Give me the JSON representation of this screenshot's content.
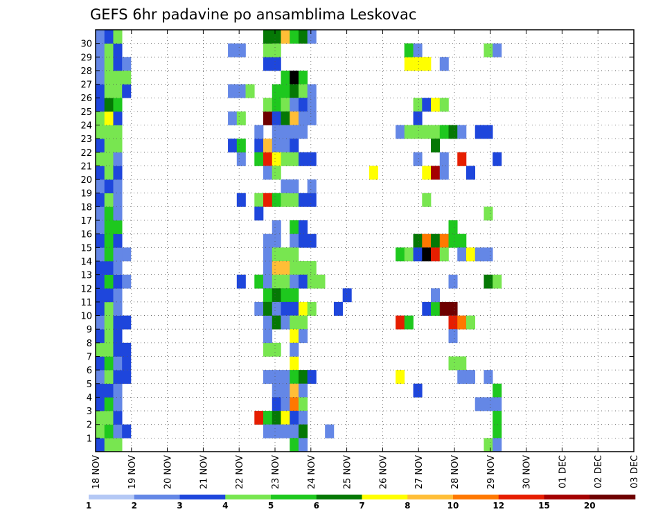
{
  "chart_data": {
    "type": "heatmap",
    "title": "GEFS 6hr padavine po ansamblima Leskovac",
    "xlabel": "",
    "ylabel": "",
    "x_tick_labels": [
      "18 NOV",
      "19 NOV",
      "20 NOV",
      "21 NOV",
      "22 NOV",
      "23 NOV",
      "24 NOV",
      "25 NOV",
      "26 NOV",
      "27 NOV",
      "28 NOV",
      "29 NOV",
      "30 NOV",
      "01 DEC",
      "02 DEC",
      "03 DEC"
    ],
    "y_tick_labels": [
      "1",
      "2",
      "3",
      "4",
      "5",
      "6",
      "7",
      "8",
      "9",
      "10",
      "11",
      "12",
      "13",
      "14",
      "15",
      "16",
      "17",
      "18",
      "19",
      "20",
      "21",
      "22",
      "23",
      "24",
      "25",
      "26",
      "27",
      "28",
      "29",
      "30"
    ],
    "time_steps": 61,
    "members": 31,
    "grid": true,
    "colorbar": {
      "levels": [
        "1",
        "2",
        "3",
        "4",
        "5",
        "6",
        "7",
        "8",
        "10",
        "12",
        "15",
        "20"
      ],
      "colors": [
        "#b4c8f5",
        "#6487e6",
        "#1e46dc",
        "#78e650",
        "#1ec81e",
        "#057805",
        "#ffff00",
        "#ffbe37",
        "#ff7800",
        "#e61e00",
        "#a50000",
        "#6e0000"
      ]
    },
    "cells": [
      [
        0,
        0,
        2
      ],
      [
        0,
        1,
        3
      ],
      [
        0,
        2,
        3
      ],
      [
        0,
        3,
        2
      ],
      [
        0,
        4,
        2
      ],
      [
        0,
        5,
        1
      ],
      [
        0,
        6,
        2
      ],
      [
        0,
        7,
        3
      ],
      [
        0,
        8,
        2
      ],
      [
        0,
        9,
        1
      ],
      [
        0,
        10,
        2
      ],
      [
        0,
        11,
        2
      ],
      [
        0,
        12,
        2
      ],
      [
        0,
        13,
        2
      ],
      [
        0,
        14,
        1
      ],
      [
        0,
        15,
        2
      ],
      [
        0,
        16,
        1
      ],
      [
        0,
        17,
        1
      ],
      [
        0,
        18,
        2
      ],
      [
        0,
        19,
        1
      ],
      [
        0,
        20,
        2
      ],
      [
        0,
        21,
        3
      ],
      [
        0,
        22,
        2
      ],
      [
        0,
        23,
        3
      ],
      [
        0,
        24,
        3
      ],
      [
        0,
        25,
        2
      ],
      [
        0,
        26,
        2
      ],
      [
        0,
        27,
        1
      ],
      [
        0,
        28,
        1
      ],
      [
        0,
        29,
        1
      ],
      [
        0,
        30,
        1
      ],
      [
        1,
        0,
        3
      ],
      [
        1,
        1,
        4
      ],
      [
        1,
        2,
        3
      ],
      [
        1,
        3,
        4
      ],
      [
        1,
        4,
        2
      ],
      [
        1,
        5,
        3
      ],
      [
        1,
        6,
        4
      ],
      [
        1,
        7,
        3
      ],
      [
        1,
        8,
        3
      ],
      [
        1,
        9,
        3
      ],
      [
        1,
        10,
        3
      ],
      [
        1,
        11,
        2
      ],
      [
        1,
        12,
        4
      ],
      [
        1,
        13,
        2
      ],
      [
        1,
        14,
        4
      ],
      [
        1,
        15,
        4
      ],
      [
        1,
        16,
        4
      ],
      [
        1,
        17,
        4
      ],
      [
        1,
        18,
        3
      ],
      [
        1,
        19,
        2
      ],
      [
        1,
        20,
        3
      ],
      [
        1,
        21,
        3
      ],
      [
        1,
        22,
        3
      ],
      [
        1,
        23,
        3
      ],
      [
        1,
        24,
        6
      ],
      [
        1,
        25,
        5
      ],
      [
        1,
        26,
        3
      ],
      [
        1,
        27,
        3
      ],
      [
        1,
        28,
        3
      ],
      [
        1,
        29,
        3
      ],
      [
        1,
        30,
        2
      ],
      [
        2,
        0,
        3
      ],
      [
        2,
        1,
        1
      ],
      [
        2,
        2,
        2
      ],
      [
        2,
        3,
        1
      ],
      [
        2,
        4,
        1
      ],
      [
        2,
        5,
        2
      ],
      [
        2,
        6,
        1
      ],
      [
        2,
        7,
        2
      ],
      [
        2,
        8,
        2
      ],
      [
        2,
        9,
        2
      ],
      [
        2,
        10,
        1
      ],
      [
        2,
        11,
        1
      ],
      [
        2,
        12,
        2
      ],
      [
        2,
        13,
        1
      ],
      [
        2,
        14,
        1
      ],
      [
        2,
        15,
        2
      ],
      [
        2,
        16,
        4
      ],
      [
        2,
        17,
        1
      ],
      [
        2,
        18,
        1
      ],
      [
        2,
        19,
        1
      ],
      [
        2,
        20,
        2
      ],
      [
        2,
        21,
        1
      ],
      [
        2,
        22,
        3
      ],
      [
        2,
        23,
        3
      ],
      [
        2,
        24,
        2
      ],
      [
        2,
        25,
        4
      ],
      [
        2,
        26,
        3
      ],
      [
        2,
        27,
        3
      ],
      [
        2,
        28,
        2
      ],
      [
        2,
        29,
        2
      ],
      [
        2,
        30,
        3
      ],
      [
        3,
        1,
        2
      ],
      [
        3,
        5,
        2
      ],
      [
        3,
        6,
        2
      ],
      [
        3,
        7,
        2
      ],
      [
        3,
        9,
        2
      ],
      [
        3,
        12,
        1
      ],
      [
        3,
        14,
        1
      ],
      [
        3,
        28,
        1
      ],
      [
        3,
        26,
        2
      ],
      [
        3,
        27,
        3
      ],
      [
        15,
        22,
        2
      ],
      [
        15,
        24,
        1
      ],
      [
        15,
        26,
        1
      ],
      [
        15,
        29,
        1
      ],
      [
        16,
        21,
        1
      ],
      [
        16,
        22,
        4
      ],
      [
        16,
        26,
        1
      ],
      [
        16,
        29,
        1
      ],
      [
        17,
        26,
        3
      ],
      [
        16,
        24,
        3
      ],
      [
        16,
        18,
        2
      ],
      [
        16,
        12,
        2
      ],
      [
        18,
        18,
        3
      ],
      [
        18,
        12,
        4
      ],
      [
        18,
        22,
        2
      ],
      [
        18,
        21,
        4
      ],
      [
        18,
        17,
        2
      ],
      [
        18,
        2,
        9
      ],
      [
        18,
        10,
        1
      ],
      [
        18,
        23,
        1
      ],
      [
        19,
        18,
        9
      ],
      [
        19,
        24,
        11
      ],
      [
        19,
        25,
        3
      ],
      [
        19,
        28,
        2
      ],
      [
        19,
        29,
        3
      ],
      [
        19,
        30,
        5
      ],
      [
        19,
        21,
        9
      ],
      [
        19,
        22,
        7
      ],
      [
        19,
        20,
        1
      ],
      [
        19,
        13,
        1
      ],
      [
        19,
        14,
        1
      ],
      [
        19,
        12,
        1
      ],
      [
        19,
        11,
        4
      ],
      [
        19,
        7,
        3
      ],
      [
        19,
        8,
        1
      ],
      [
        19,
        9,
        1
      ],
      [
        19,
        5,
        1
      ],
      [
        19,
        2,
        4
      ],
      [
        19,
        1,
        1
      ],
      [
        19,
        15,
        1
      ],
      [
        19,
        10,
        5
      ],
      [
        20,
        30,
        5
      ],
      [
        20,
        28,
        2
      ],
      [
        20,
        26,
        4
      ],
      [
        20,
        25,
        4
      ],
      [
        20,
        24,
        2
      ],
      [
        20,
        23,
        1
      ],
      [
        20,
        22,
        1
      ],
      [
        20,
        21,
        6
      ],
      [
        20,
        20,
        3
      ],
      [
        20,
        18,
        4
      ],
      [
        20,
        16,
        1
      ],
      [
        20,
        15,
        1
      ],
      [
        20,
        14,
        3
      ],
      [
        20,
        13,
        7
      ],
      [
        20,
        12,
        3
      ],
      [
        20,
        11,
        5
      ],
      [
        20,
        10,
        1
      ],
      [
        20,
        9,
        5
      ],
      [
        20,
        7,
        3
      ],
      [
        20,
        5,
        1
      ],
      [
        20,
        4,
        1
      ],
      [
        20,
        3,
        2
      ],
      [
        20,
        2,
        5
      ],
      [
        20,
        1,
        1
      ],
      [
        20,
        29,
        3
      ],
      [
        21,
        30,
        7
      ],
      [
        21,
        27,
        4
      ],
      [
        21,
        26,
        4
      ],
      [
        21,
        25,
        3
      ],
      [
        21,
        24,
        5
      ],
      [
        21,
        23,
        1
      ],
      [
        21,
        22,
        1
      ],
      [
        21,
        21,
        3
      ],
      [
        21,
        19,
        1
      ],
      [
        21,
        18,
        3
      ],
      [
        21,
        14,
        3
      ],
      [
        21,
        13,
        7
      ],
      [
        21,
        12,
        3
      ],
      [
        21,
        11,
        4
      ],
      [
        21,
        10,
        2
      ],
      [
        21,
        9,
        1
      ],
      [
        21,
        5,
        1
      ],
      [
        21,
        4,
        1
      ],
      [
        21,
        3,
        1
      ],
      [
        21,
        2,
        6
      ],
      [
        21,
        1,
        1
      ],
      [
        22,
        30,
        4
      ],
      [
        22,
        27,
        12
      ],
      [
        22,
        26,
        5
      ],
      [
        22,
        25,
        1
      ],
      [
        22,
        24,
        7
      ],
      [
        22,
        23,
        1
      ],
      [
        22,
        22,
        2
      ],
      [
        22,
        21,
        3
      ],
      [
        22,
        18,
        3
      ],
      [
        22,
        16,
        4
      ],
      [
        22,
        15,
        1
      ],
      [
        22,
        14,
        3
      ],
      [
        22,
        13,
        3
      ],
      [
        22,
        12,
        1
      ],
      [
        22,
        11,
        4
      ],
      [
        22,
        10,
        2
      ],
      [
        22,
        9,
        3
      ],
      [
        22,
        8,
        6
      ],
      [
        22,
        6,
        6
      ],
      [
        22,
        5,
        4
      ],
      [
        22,
        4,
        7
      ],
      [
        22,
        3,
        8
      ],
      [
        22,
        2,
        2
      ],
      [
        22,
        1,
        1
      ],
      [
        22,
        0,
        4
      ],
      [
        22,
        7,
        1
      ],
      [
        22,
        19,
        1
      ],
      [
        23,
        30,
        5
      ],
      [
        23,
        27,
        4
      ],
      [
        23,
        26,
        3
      ],
      [
        23,
        25,
        2
      ],
      [
        23,
        24,
        1
      ],
      [
        23,
        23,
        1
      ],
      [
        23,
        21,
        2
      ],
      [
        23,
        18,
        2
      ],
      [
        23,
        16,
        2
      ],
      [
        23,
        15,
        2
      ],
      [
        23,
        13,
        3
      ],
      [
        23,
        12,
        2
      ],
      [
        23,
        10,
        6
      ],
      [
        23,
        9,
        3
      ],
      [
        23,
        8,
        1
      ],
      [
        23,
        5,
        5
      ],
      [
        23,
        4,
        1
      ],
      [
        23,
        3,
        3
      ],
      [
        23,
        2,
        1
      ],
      [
        23,
        1,
        5
      ],
      [
        23,
        0,
        1
      ],
      [
        24,
        30,
        1
      ],
      [
        24,
        26,
        1
      ],
      [
        24,
        25,
        1
      ],
      [
        24,
        24,
        1
      ],
      [
        24,
        21,
        2
      ],
      [
        24,
        18,
        2
      ],
      [
        24,
        15,
        2
      ],
      [
        24,
        13,
        3
      ],
      [
        24,
        12,
        3
      ],
      [
        24,
        10,
        3
      ],
      [
        24,
        5,
        2
      ],
      [
        24,
        19,
        1
      ],
      [
        25,
        12,
        3
      ],
      [
        26,
        1,
        1
      ],
      [
        27,
        10,
        2
      ],
      [
        28,
        11,
        2
      ],
      [
        31,
        20,
        6
      ],
      [
        34,
        23,
        1
      ],
      [
        34,
        9,
        9
      ],
      [
        34,
        14,
        4
      ],
      [
        34,
        5,
        6
      ],
      [
        35,
        29,
        4
      ],
      [
        35,
        28,
        6
      ],
      [
        35,
        23,
        3
      ],
      [
        35,
        14,
        3
      ],
      [
        35,
        9,
        4
      ],
      [
        35,
        29,
        4
      ],
      [
        36,
        29,
        1
      ],
      [
        36,
        28,
        6
      ],
      [
        36,
        25,
        3
      ],
      [
        36,
        24,
        2
      ],
      [
        36,
        23,
        3
      ],
      [
        36,
        21,
        1
      ],
      [
        36,
        15,
        5
      ],
      [
        36,
        14,
        2
      ],
      [
        36,
        4,
        2
      ],
      [
        37,
        28,
        6
      ],
      [
        37,
        25,
        2
      ],
      [
        37,
        23,
        3
      ],
      [
        37,
        20,
        6
      ],
      [
        37,
        18,
        3
      ],
      [
        37,
        15,
        8
      ],
      [
        37,
        14,
        12
      ],
      [
        37,
        10,
        2
      ],
      [
        38,
        25,
        6
      ],
      [
        38,
        23,
        3
      ],
      [
        38,
        22,
        5
      ],
      [
        38,
        20,
        10
      ],
      [
        38,
        15,
        5
      ],
      [
        38,
        14,
        9
      ],
      [
        38,
        10,
        4
      ],
      [
        38,
        11,
        1
      ],
      [
        39,
        28,
        1
      ],
      [
        39,
        25,
        3
      ],
      [
        39,
        23,
        4
      ],
      [
        39,
        21,
        1
      ],
      [
        39,
        20,
        1
      ],
      [
        39,
        15,
        8
      ],
      [
        39,
        14,
        3
      ],
      [
        39,
        10,
        11
      ],
      [
        40,
        23,
        5
      ],
      [
        40,
        16,
        4
      ],
      [
        40,
        15,
        4
      ],
      [
        40,
        10,
        11
      ],
      [
        40,
        9,
        9
      ],
      [
        40,
        8,
        1
      ],
      [
        40,
        6,
        3
      ],
      [
        40,
        12,
        1
      ],
      [
        41,
        23,
        1
      ],
      [
        41,
        15,
        4
      ],
      [
        41,
        21,
        9
      ],
      [
        41,
        9,
        8
      ],
      [
        41,
        6,
        3
      ],
      [
        41,
        14,
        1
      ],
      [
        41,
        5,
        1
      ],
      [
        42,
        20,
        2
      ],
      [
        42,
        14,
        6
      ],
      [
        42,
        9,
        3
      ],
      [
        42,
        5,
        1
      ],
      [
        43,
        23,
        2
      ],
      [
        43,
        14,
        1
      ],
      [
        43,
        3,
        1
      ],
      [
        44,
        29,
        3
      ],
      [
        44,
        23,
        2
      ],
      [
        44,
        17,
        3
      ],
      [
        44,
        14,
        1
      ],
      [
        44,
        12,
        5
      ],
      [
        44,
        5,
        1
      ],
      [
        44,
        3,
        1
      ],
      [
        44,
        0,
        3
      ],
      [
        45,
        29,
        1
      ],
      [
        45,
        12,
        3
      ],
      [
        45,
        4,
        4
      ],
      [
        45,
        3,
        1
      ],
      [
        45,
        2,
        4
      ],
      [
        45,
        1,
        4
      ],
      [
        45,
        0,
        1
      ],
      [
        45,
        21,
        2
      ]
    ]
  }
}
